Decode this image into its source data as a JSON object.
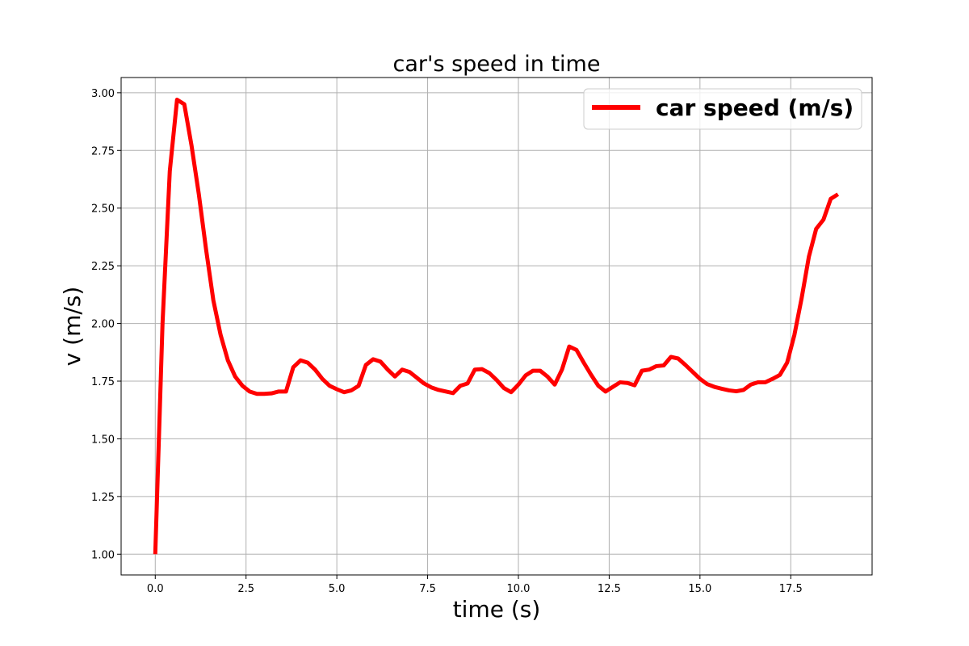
{
  "chart_data": {
    "type": "line",
    "title": "car's speed in time",
    "xlabel": "time (s)",
    "ylabel": "v (m/s)",
    "xlim": [
      -0.94,
      19.74
    ],
    "ylim": [
      0.91,
      3.066
    ],
    "xticks": [
      0.0,
      2.5,
      5.0,
      7.5,
      10.0,
      12.5,
      15.0,
      17.5
    ],
    "xtick_labels": [
      "0.0",
      "2.5",
      "5.0",
      "7.5",
      "10.0",
      "12.5",
      "15.0",
      "17.5"
    ],
    "yticks": [
      1.0,
      1.25,
      1.5,
      1.75,
      2.0,
      2.25,
      2.5,
      2.75,
      3.0
    ],
    "ytick_labels": [
      "1.00",
      "1.25",
      "1.50",
      "1.75",
      "2.00",
      "2.25",
      "2.50",
      "2.75",
      "3.00"
    ],
    "grid": true,
    "legend_position": "top-right",
    "series": [
      {
        "name": "car speed (m/s)",
        "color": "#ff0000",
        "x": [
          0.0,
          0.2,
          0.4,
          0.6,
          0.8,
          1.0,
          1.2,
          1.4,
          1.6,
          1.8,
          2.0,
          2.2,
          2.4,
          2.6,
          2.8,
          3.0,
          3.2,
          3.4,
          3.6,
          3.8,
          4.0,
          4.2,
          4.4,
          4.6,
          4.8,
          5.0,
          5.2,
          5.4,
          5.6,
          5.8,
          6.0,
          6.2,
          6.4,
          6.6,
          6.8,
          7.0,
          7.2,
          7.4,
          7.6,
          7.8,
          8.0,
          8.2,
          8.4,
          8.6,
          8.8,
          9.0,
          9.2,
          9.4,
          9.6,
          9.8,
          10.0,
          10.2,
          10.4,
          10.6,
          10.8,
          11.0,
          11.2,
          11.4,
          11.6,
          11.8,
          12.0,
          12.2,
          12.4,
          12.6,
          12.8,
          13.0,
          13.2,
          13.4,
          13.6,
          13.8,
          14.0,
          14.2,
          14.4,
          14.6,
          14.8,
          15.0,
          15.2,
          15.4,
          15.6,
          15.8,
          16.0,
          16.2,
          16.4,
          16.6,
          16.8,
          17.0,
          17.2,
          17.4,
          17.6,
          17.8,
          18.0,
          18.2,
          18.4,
          18.6,
          18.8
        ],
        "y": [
          1.0,
          2.0,
          2.66,
          2.97,
          2.95,
          2.77,
          2.56,
          2.32,
          2.1,
          1.95,
          1.84,
          1.77,
          1.73,
          1.705,
          1.695,
          1.695,
          1.697,
          1.705,
          1.705,
          1.81,
          1.84,
          1.83,
          1.8,
          1.76,
          1.73,
          1.715,
          1.702,
          1.71,
          1.73,
          1.82,
          1.845,
          1.835,
          1.8,
          1.77,
          1.8,
          1.79,
          1.765,
          1.74,
          1.723,
          1.712,
          1.705,
          1.698,
          1.73,
          1.74,
          1.8,
          1.802,
          1.785,
          1.755,
          1.72,
          1.702,
          1.735,
          1.775,
          1.795,
          1.795,
          1.77,
          1.735,
          1.8,
          1.9,
          1.885,
          1.83,
          1.778,
          1.73,
          1.705,
          1.725,
          1.745,
          1.742,
          1.732,
          1.795,
          1.8,
          1.815,
          1.818,
          1.855,
          1.848,
          1.82,
          1.79,
          1.76,
          1.737,
          1.725,
          1.717,
          1.71,
          1.706,
          1.712,
          1.735,
          1.745,
          1.745,
          1.76,
          1.777,
          1.83,
          1.95,
          2.11,
          2.29,
          2.41,
          2.45,
          2.54,
          2.56
        ]
      }
    ]
  }
}
